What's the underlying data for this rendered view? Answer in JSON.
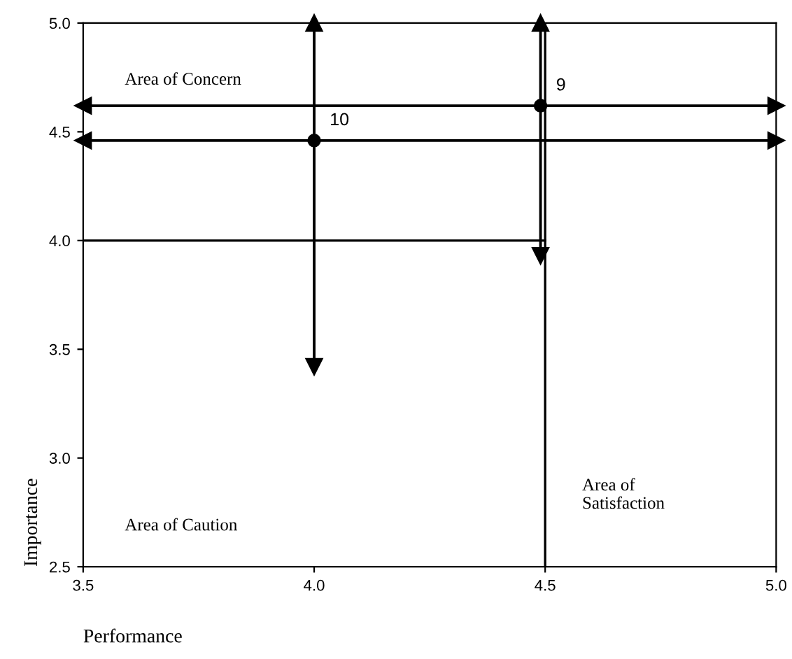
{
  "chart_data": {
    "type": "scatter",
    "xlabel": "Performance",
    "ylabel": "Importance",
    "x": [
      4.0,
      4.49
    ],
    "values": [
      4.46,
      4.62
    ],
    "errors": [
      [
        3.42,
        5.0
      ],
      [
        3.93,
        5.0
      ]
    ],
    "xerrors": [
      [
        3.5,
        5.0
      ],
      [
        3.5,
        5.0
      ]
    ],
    "color": "#000000",
    "marker": "circle",
    "xlim": [
      3.5,
      5.0
    ],
    "ylim": [
      2.5,
      5.0
    ],
    "xticks": [
      3.5,
      {
        "value": 4,
        "label": "4.0"
      },
      4.5,
      {
        "value": 5,
        "label": "5.0"
      }
    ],
    "yticks": [
      2.5,
      {
        "value": 3,
        "label": "3.0"
      },
      3.5,
      {
        "value": 4,
        "label": "4.0"
      },
      4.5,
      {
        "value": 5,
        "label": "5.0"
      }
    ],
    "grid": false,
    "legend": false,
    "ref_lines": [
      {
        "axis": "x",
        "value": 4.5
      },
      {
        "axis": "y",
        "value": 4.0
      }
    ],
    "annotations": [
      {
        "text": "10",
        "x": 4.0,
        "y": 4.46
      },
      {
        "text": "9",
        "x": 4.49,
        "y": 4.62
      },
      "Area of Concern",
      "Area of Caution",
      "Area of\nSatisfaction"
    ]
  }
}
